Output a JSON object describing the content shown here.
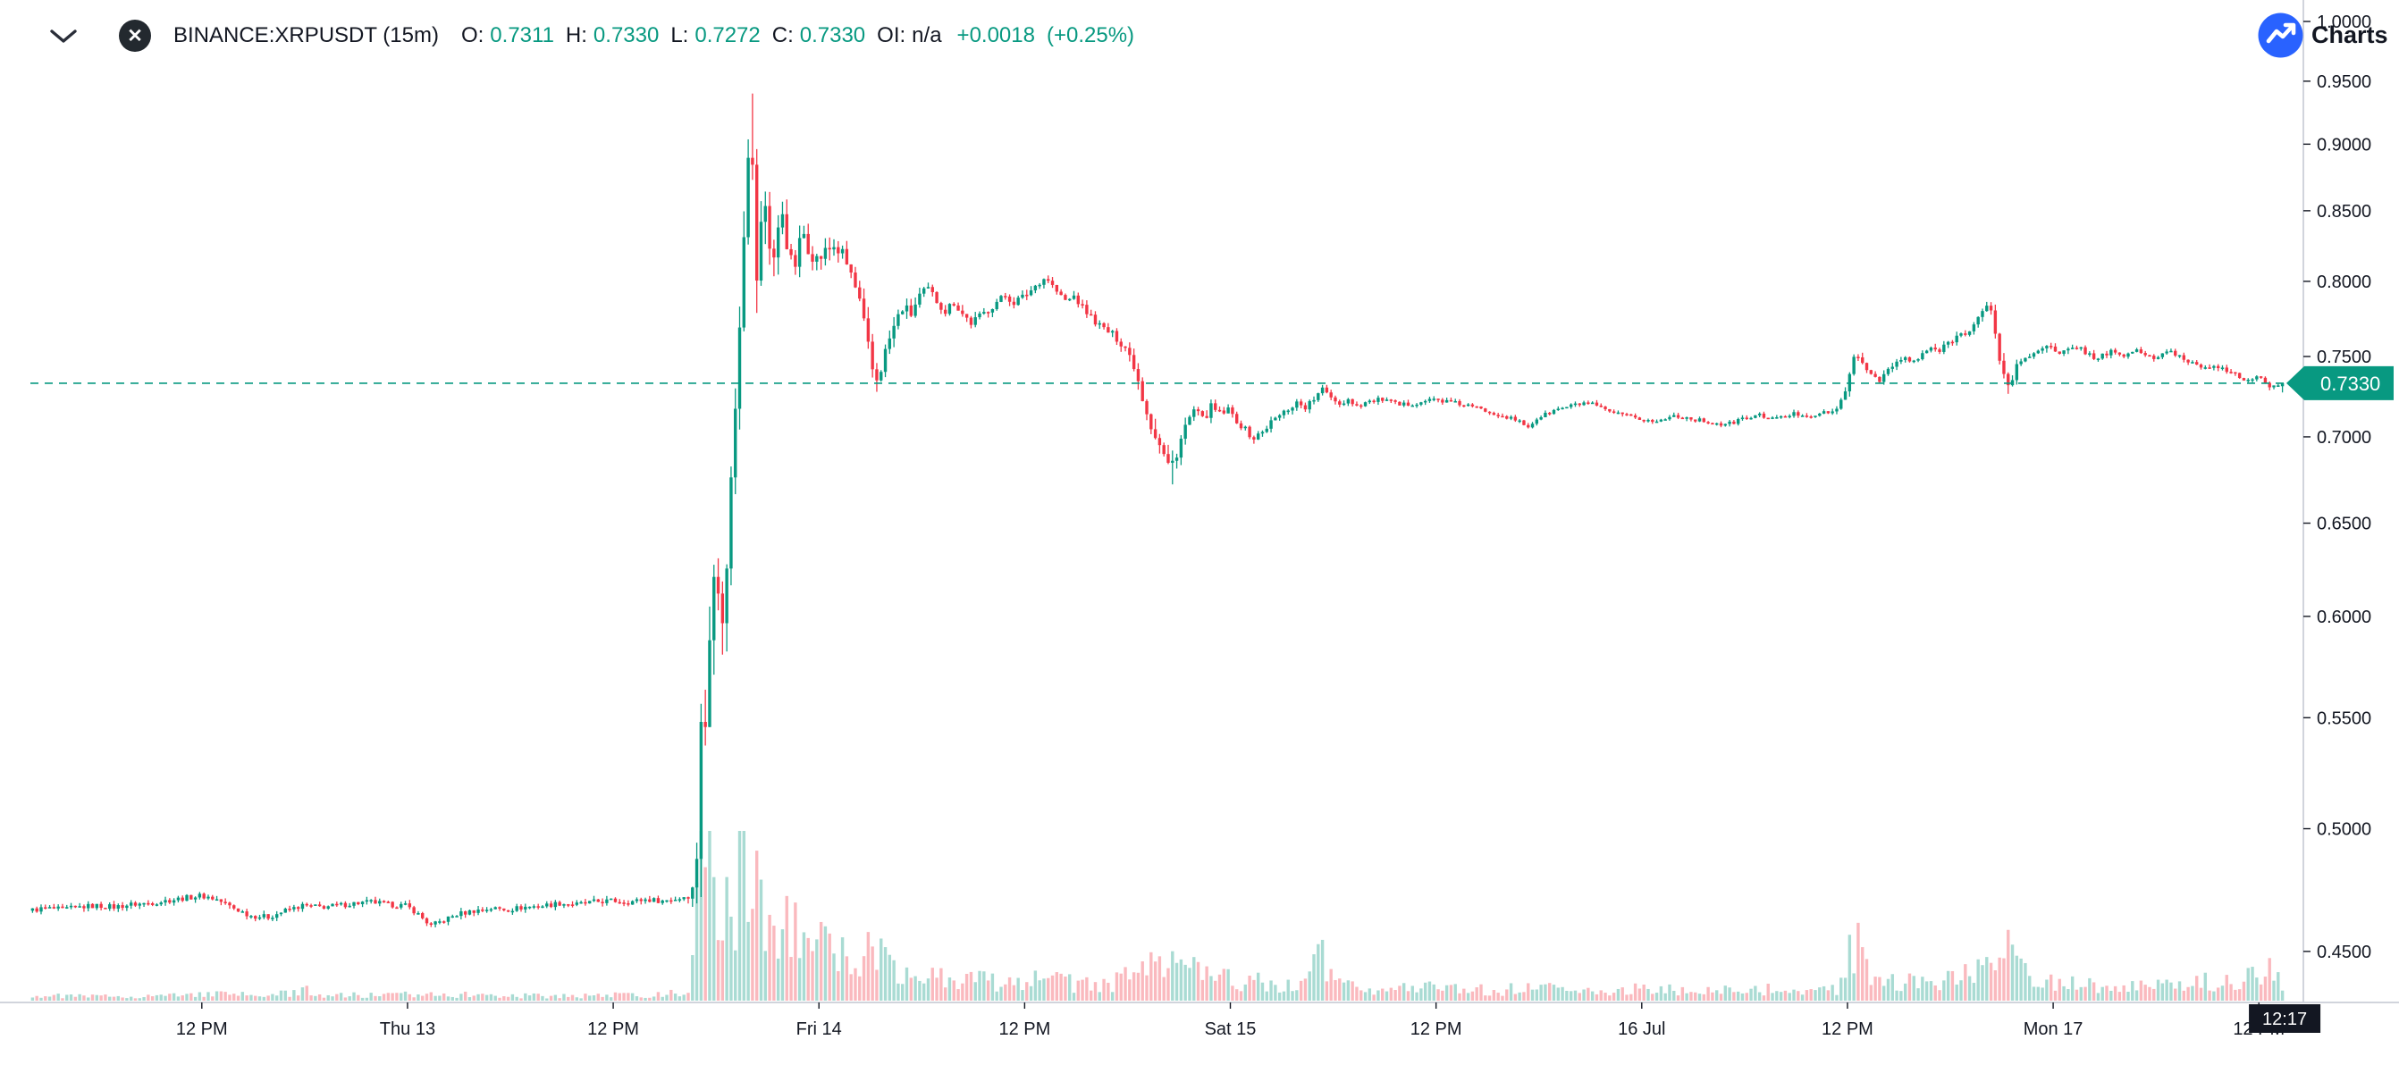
{
  "header": {
    "symbol_title": "BINANCE:XRPUSDT (15m)",
    "open_label": "O:",
    "open": "0.7311",
    "high_label": "H:",
    "high": "0.7330",
    "low_label": "L:",
    "low": "0.7272",
    "close_label": "C:",
    "close": "0.7330",
    "oi_label": "OI:",
    "oi": "n/a",
    "change": "+0.0018",
    "change_pct": "(+0.25%)"
  },
  "attribution": {
    "label": "Charts"
  },
  "colors": {
    "up": "#089981",
    "down": "#f23645",
    "vol_up": "rgba(8,153,129,0.35)",
    "vol_down": "rgba(242,54,69,0.35)",
    "accent": "#089981",
    "axis_text": "#131722",
    "axis_line": "#d1d4dc",
    "time_label_bg": "#131722",
    "logo_blue": "#2962ff"
  },
  "chart_data": {
    "type": "candlestick",
    "symbol": "BINANCE:XRPUSDT",
    "interval": "15m",
    "scale": "log",
    "legend": "volume bars shown at bottom, colored by candle direction",
    "ylim": [
      0.4307,
      1.0186
    ],
    "price_ticks": [
      1.0,
      0.95,
      0.9,
      0.85,
      0.8,
      0.75,
      0.7,
      0.65,
      0.6,
      0.55,
      0.5,
      0.45
    ],
    "time_ticks": [
      {
        "t": 12,
        "label": "12 PM"
      },
      {
        "t": 24,
        "label": "Thu 13"
      },
      {
        "t": 36,
        "label": "12 PM"
      },
      {
        "t": 48,
        "label": "Fri 14"
      },
      {
        "t": 60,
        "label": "12 PM"
      },
      {
        "t": 72,
        "label": "Sat 15"
      },
      {
        "t": 84,
        "label": "12 PM"
      },
      {
        "t": 96,
        "label": "16 Jul"
      },
      {
        "t": 108,
        "label": "12 PM"
      },
      {
        "t": 120,
        "label": "Mon 17"
      },
      {
        "t": 132,
        "label": "12 PM"
      }
    ],
    "current_price_value": 0.733,
    "current_price_label": "0.7330",
    "current_time": "12:17",
    "current_time_t": 133.4,
    "t_start": 2,
    "t_end": 133.5,
    "candle_minutes": 15,
    "ohlc_last": {
      "o": 0.7311,
      "h": 0.733,
      "l": 0.7272,
      "c": 0.733
    },
    "extremes": [
      {
        "t": 44.1,
        "high": 0.94
      },
      {
        "t": 68.6,
        "low": 0.672
      }
    ],
    "price_path": [
      [
        2,
        0.466
      ],
      [
        3,
        0.467
      ],
      [
        4,
        0.4665
      ],
      [
        5,
        0.4675
      ],
      [
        6,
        0.468
      ],
      [
        7,
        0.4675
      ],
      [
        8,
        0.4685
      ],
      [
        9,
        0.469
      ],
      [
        10,
        0.47
      ],
      [
        11,
        0.471
      ],
      [
        12,
        0.472
      ],
      [
        12.5,
        0.4715
      ],
      [
        13,
        0.4705
      ],
      [
        14,
        0.467
      ],
      [
        15,
        0.464
      ],
      [
        16,
        0.4635
      ],
      [
        17,
        0.466
      ],
      [
        18,
        0.468
      ],
      [
        19,
        0.4675
      ],
      [
        20,
        0.468
      ],
      [
        21,
        0.469
      ],
      [
        22,
        0.4695
      ],
      [
        23,
        0.4685
      ],
      [
        24,
        0.468
      ],
      [
        24.5,
        0.466
      ],
      [
        25,
        0.463
      ],
      [
        25.5,
        0.46
      ],
      [
        26,
        0.4615
      ],
      [
        27,
        0.4645
      ],
      [
        28,
        0.466
      ],
      [
        29,
        0.467
      ],
      [
        30,
        0.4665
      ],
      [
        31,
        0.4675
      ],
      [
        32,
        0.468
      ],
      [
        33,
        0.469
      ],
      [
        34,
        0.4685
      ],
      [
        35,
        0.4695
      ],
      [
        36,
        0.47
      ],
      [
        37,
        0.4695
      ],
      [
        38,
        0.4705
      ],
      [
        39,
        0.47
      ],
      [
        40,
        0.471
      ],
      [
        40.6,
        0.473
      ],
      [
        40.8,
        0.475
      ],
      [
        41,
        0.49
      ],
      [
        41.1,
        0.53
      ],
      [
        41.3,
        0.56
      ],
      [
        41.5,
        0.54
      ],
      [
        41.7,
        0.58
      ],
      [
        41.9,
        0.62
      ],
      [
        42.1,
        0.65
      ],
      [
        42.3,
        0.615
      ],
      [
        42.5,
        0.59
      ],
      [
        42.7,
        0.625
      ],
      [
        42.9,
        0.655
      ],
      [
        43.1,
        0.69
      ],
      [
        43.3,
        0.73
      ],
      [
        43.5,
        0.78
      ],
      [
        43.7,
        0.83
      ],
      [
        43.9,
        0.88
      ],
      [
        44.1,
        0.925
      ],
      [
        44.3,
        0.86
      ],
      [
        44.5,
        0.805
      ],
      [
        44.7,
        0.825
      ],
      [
        44.9,
        0.865
      ],
      [
        45.1,
        0.845
      ],
      [
        45.4,
        0.81
      ],
      [
        45.7,
        0.83
      ],
      [
        46,
        0.85
      ],
      [
        46.3,
        0.825
      ],
      [
        46.6,
        0.805
      ],
      [
        46.9,
        0.82
      ],
      [
        47.2,
        0.835
      ],
      [
        47.5,
        0.825
      ],
      [
        48,
        0.815
      ],
      [
        48.5,
        0.82
      ],
      [
        49,
        0.825
      ],
      [
        49.5,
        0.818
      ],
      [
        50,
        0.805
      ],
      [
        50.5,
        0.785
      ],
      [
        51,
        0.755
      ],
      [
        51.4,
        0.733
      ],
      [
        51.8,
        0.745
      ],
      [
        52.2,
        0.76
      ],
      [
        52.6,
        0.772
      ],
      [
        53,
        0.782
      ],
      [
        53.5,
        0.778
      ],
      [
        54,
        0.79
      ],
      [
        54.5,
        0.794
      ],
      [
        55,
        0.787
      ],
      [
        55.5,
        0.78
      ],
      [
        56,
        0.786
      ],
      [
        56.5,
        0.778
      ],
      [
        57,
        0.772
      ],
      [
        57.5,
        0.776
      ],
      [
        58,
        0.781
      ],
      [
        58.5,
        0.786
      ],
      [
        59,
        0.79
      ],
      [
        59.5,
        0.786
      ],
      [
        60,
        0.789
      ],
      [
        60.5,
        0.794
      ],
      [
        61,
        0.8
      ],
      [
        61.4,
        0.803
      ],
      [
        61.8,
        0.796
      ],
      [
        62.2,
        0.79
      ],
      [
        62.6,
        0.786
      ],
      [
        63,
        0.79
      ],
      [
        63.5,
        0.782
      ],
      [
        64,
        0.776
      ],
      [
        64.5,
        0.77
      ],
      [
        65,
        0.766
      ],
      [
        65.5,
        0.762
      ],
      [
        66,
        0.756
      ],
      [
        66.5,
        0.745
      ],
      [
        67,
        0.725
      ],
      [
        67.5,
        0.708
      ],
      [
        68,
        0.695
      ],
      [
        68.6,
        0.68
      ],
      [
        69,
        0.692
      ],
      [
        69.5,
        0.706
      ],
      [
        70,
        0.716
      ],
      [
        70.5,
        0.71
      ],
      [
        71,
        0.718
      ],
      [
        71.5,
        0.714
      ],
      [
        72,
        0.716
      ],
      [
        72.5,
        0.71
      ],
      [
        73,
        0.704
      ],
      [
        73.5,
        0.699
      ],
      [
        74,
        0.703
      ],
      [
        74.5,
        0.709
      ],
      [
        75,
        0.713
      ],
      [
        75.5,
        0.717
      ],
      [
        76,
        0.721
      ],
      [
        76.5,
        0.718
      ],
      [
        77,
        0.723
      ],
      [
        77.5,
        0.729
      ],
      [
        78,
        0.725
      ],
      [
        78.5,
        0.72
      ],
      [
        79,
        0.723
      ],
      [
        79.5,
        0.719
      ],
      [
        80,
        0.721
      ],
      [
        81,
        0.723
      ],
      [
        82,
        0.719
      ],
      [
        83,
        0.721
      ],
      [
        84,
        0.723
      ],
      [
        85,
        0.721
      ],
      [
        86,
        0.719
      ],
      [
        87,
        0.716
      ],
      [
        88,
        0.713
      ],
      [
        89,
        0.709
      ],
      [
        89.5,
        0.706
      ],
      [
        90,
        0.711
      ],
      [
        91,
        0.716
      ],
      [
        92,
        0.719
      ],
      [
        93,
        0.721
      ],
      [
        94,
        0.716
      ],
      [
        95,
        0.713
      ],
      [
        96,
        0.711
      ],
      [
        97,
        0.709
      ],
      [
        98,
        0.713
      ],
      [
        99,
        0.711
      ],
      [
        100,
        0.709
      ],
      [
        101,
        0.707
      ],
      [
        102,
        0.711
      ],
      [
        103,
        0.713
      ],
      [
        104,
        0.711
      ],
      [
        105,
        0.714
      ],
      [
        106,
        0.713
      ],
      [
        107,
        0.715
      ],
      [
        107.6,
        0.716
      ],
      [
        108,
        0.73
      ],
      [
        108.3,
        0.744
      ],
      [
        108.6,
        0.749
      ],
      [
        109,
        0.745
      ],
      [
        109.5,
        0.739
      ],
      [
        110,
        0.736
      ],
      [
        110.5,
        0.741
      ],
      [
        111,
        0.746
      ],
      [
        111.5,
        0.749
      ],
      [
        112,
        0.746
      ],
      [
        112.5,
        0.751
      ],
      [
        113,
        0.756
      ],
      [
        113.5,
        0.753
      ],
      [
        114,
        0.759
      ],
      [
        114.5,
        0.763
      ],
      [
        115,
        0.766
      ],
      [
        115.5,
        0.771
      ],
      [
        116,
        0.779
      ],
      [
        116.4,
        0.783
      ],
      [
        116.8,
        0.764
      ],
      [
        117.1,
        0.742
      ],
      [
        117.5,
        0.731
      ],
      [
        118,
        0.743
      ],
      [
        118.5,
        0.749
      ],
      [
        119,
        0.753
      ],
      [
        119.5,
        0.757
      ],
      [
        120,
        0.755
      ],
      [
        120.5,
        0.751
      ],
      [
        121,
        0.754
      ],
      [
        121.5,
        0.757
      ],
      [
        122,
        0.753
      ],
      [
        122.5,
        0.749
      ],
      [
        123,
        0.751
      ],
      [
        123.5,
        0.753
      ],
      [
        124,
        0.75
      ],
      [
        124.5,
        0.752
      ],
      [
        125,
        0.754
      ],
      [
        125.5,
        0.751
      ],
      [
        126,
        0.749
      ],
      [
        126.5,
        0.751
      ],
      [
        127,
        0.753
      ],
      [
        127.5,
        0.75
      ],
      [
        128,
        0.747
      ],
      [
        128.5,
        0.745
      ],
      [
        129,
        0.743
      ],
      [
        129.5,
        0.745
      ],
      [
        130,
        0.742
      ],
      [
        130.5,
        0.739
      ],
      [
        131,
        0.737
      ],
      [
        131.5,
        0.735
      ],
      [
        132,
        0.737
      ],
      [
        132.5,
        0.733
      ],
      [
        133,
        0.73
      ],
      [
        133.25,
        0.7311
      ],
      [
        133.5,
        0.733
      ]
    ],
    "volatility": [
      [
        2,
        0.0018
      ],
      [
        40,
        0.0018
      ],
      [
        40.8,
        0.005
      ],
      [
        41,
        0.02
      ],
      [
        42,
        0.025
      ],
      [
        43,
        0.022
      ],
      [
        44,
        0.028
      ],
      [
        44.5,
        0.03
      ],
      [
        45,
        0.018
      ],
      [
        46,
        0.014
      ],
      [
        47,
        0.012
      ],
      [
        48,
        0.01
      ],
      [
        50,
        0.009
      ],
      [
        51,
        0.01
      ],
      [
        52,
        0.008
      ],
      [
        54,
        0.006
      ],
      [
        56,
        0.005
      ],
      [
        58,
        0.0045
      ],
      [
        60,
        0.0045
      ],
      [
        62,
        0.004
      ],
      [
        64,
        0.004
      ],
      [
        66,
        0.005
      ],
      [
        67,
        0.008
      ],
      [
        68.6,
        0.009
      ],
      [
        69.5,
        0.006
      ],
      [
        71,
        0.004
      ],
      [
        73,
        0.0035
      ],
      [
        76,
        0.003
      ],
      [
        80,
        0.0025
      ],
      [
        90,
        0.002
      ],
      [
        100,
        0.002
      ],
      [
        107,
        0.002
      ],
      [
        108,
        0.005
      ],
      [
        109,
        0.004
      ],
      [
        112,
        0.003
      ],
      [
        115,
        0.0035
      ],
      [
        116.5,
        0.005
      ],
      [
        117.3,
        0.008
      ],
      [
        118.5,
        0.004
      ],
      [
        121,
        0.003
      ],
      [
        126,
        0.0025
      ],
      [
        129,
        0.0025
      ],
      [
        132,
        0.0025
      ],
      [
        133.5,
        0.003
      ]
    ],
    "volume_rel": [
      [
        2,
        0.03
      ],
      [
        6,
        0.025
      ],
      [
        10,
        0.03
      ],
      [
        12,
        0.04
      ],
      [
        14,
        0.035
      ],
      [
        16,
        0.03
      ],
      [
        18,
        0.06
      ],
      [
        19,
        0.035
      ],
      [
        22,
        0.03
      ],
      [
        24,
        0.035
      ],
      [
        25.5,
        0.05
      ],
      [
        27,
        0.035
      ],
      [
        30,
        0.03
      ],
      [
        33,
        0.028
      ],
      [
        36,
        0.032
      ],
      [
        39,
        0.035
      ],
      [
        40.5,
        0.06
      ],
      [
        40.9,
        0.5
      ],
      [
        41.1,
        1.0
      ],
      [
        41.4,
        0.8
      ],
      [
        41.8,
        0.6
      ],
      [
        42.2,
        0.65
      ],
      [
        42.6,
        0.55
      ],
      [
        43,
        0.5
      ],
      [
        43.5,
        0.75
      ],
      [
        44,
        0.85
      ],
      [
        44.5,
        0.6
      ],
      [
        45,
        0.5
      ],
      [
        45.5,
        0.45
      ],
      [
        46,
        0.42
      ],
      [
        47,
        0.38
      ],
      [
        48,
        0.32
      ],
      [
        49,
        0.26
      ],
      [
        50,
        0.22
      ],
      [
        51,
        0.3
      ],
      [
        52,
        0.24
      ],
      [
        53,
        0.18
      ],
      [
        54,
        0.16
      ],
      [
        55,
        0.14
      ],
      [
        56,
        0.13
      ],
      [
        57,
        0.12
      ],
      [
        58,
        0.11
      ],
      [
        59,
        0.12
      ],
      [
        60,
        0.13
      ],
      [
        61,
        0.12
      ],
      [
        62,
        0.11
      ],
      [
        63,
        0.1
      ],
      [
        64,
        0.1
      ],
      [
        65,
        0.1
      ],
      [
        66,
        0.14
      ],
      [
        67,
        0.22
      ],
      [
        68,
        0.28
      ],
      [
        68.6,
        0.3
      ],
      [
        69.5,
        0.2
      ],
      [
        70.5,
        0.14
      ],
      [
        72,
        0.12
      ],
      [
        73.5,
        0.11
      ],
      [
        75,
        0.1
      ],
      [
        76.5,
        0.12
      ],
      [
        77.2,
        0.28
      ],
      [
        78,
        0.12
      ],
      [
        79,
        0.09
      ],
      [
        80,
        0.08
      ],
      [
        82,
        0.07
      ],
      [
        84,
        0.075
      ],
      [
        86,
        0.065
      ],
      [
        88,
        0.06
      ],
      [
        89.5,
        0.09
      ],
      [
        91,
        0.07
      ],
      [
        93,
        0.065
      ],
      [
        95,
        0.06
      ],
      [
        96,
        0.07
      ],
      [
        98,
        0.065
      ],
      [
        100,
        0.06
      ],
      [
        102,
        0.065
      ],
      [
        104,
        0.07
      ],
      [
        106,
        0.065
      ],
      [
        107.5,
        0.07
      ],
      [
        108.1,
        0.3
      ],
      [
        108.5,
        0.34
      ],
      [
        109,
        0.22
      ],
      [
        110,
        0.13
      ],
      [
        111,
        0.11
      ],
      [
        112,
        0.12
      ],
      [
        113,
        0.14
      ],
      [
        114,
        0.12
      ],
      [
        115,
        0.15
      ],
      [
        116,
        0.2
      ],
      [
        116.8,
        0.24
      ],
      [
        117.3,
        0.28
      ],
      [
        118,
        0.18
      ],
      [
        119,
        0.12
      ],
      [
        120,
        0.1
      ],
      [
        121.5,
        0.09
      ],
      [
        123,
        0.08
      ],
      [
        124.5,
        0.075
      ],
      [
        126,
        0.08
      ],
      [
        127.5,
        0.085
      ],
      [
        129,
        0.11
      ],
      [
        130,
        0.1
      ],
      [
        131,
        0.12
      ],
      [
        132,
        0.14
      ],
      [
        132.8,
        0.17
      ],
      [
        133.3,
        0.13
      ],
      [
        133.5,
        0.1
      ]
    ]
  }
}
